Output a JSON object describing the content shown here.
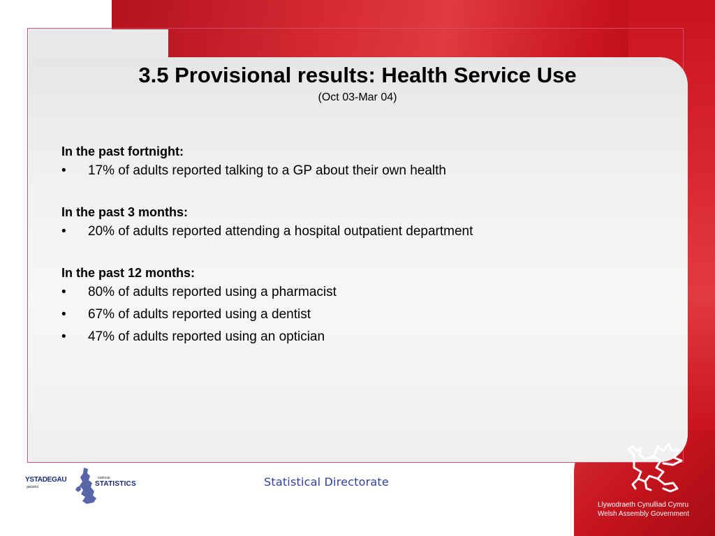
{
  "slide": {
    "title": "3.5 Provisional results: Health Service Use",
    "subtitle": "(Oct 03-Mar 04)",
    "sections": [
      {
        "heading": "In the past fortnight:",
        "bullets": [
          "17% of adults reported talking to a GP about their own health"
        ]
      },
      {
        "heading": "In the past 3 months:",
        "bullets": [
          "20% of adults reported attending a hospital outpatient department"
        ]
      },
      {
        "heading": "In the past 12 months:",
        "bullets": [
          "80% of adults reported using a pharmacist",
          "67% of adults reported using a dentist",
          "47% of adults reported using an optician"
        ]
      }
    ],
    "bullet_symbol": "•"
  },
  "footer": {
    "text": "Statistical Directorate",
    "stats_logo": {
      "welsh": "YSTADEGAU",
      "welsh_sub": "gwladol",
      "english_small": "national",
      "english": "STATISTICS"
    },
    "wag_logo": {
      "line1": "Llywodraeth Cynulliad Cymru",
      "line2": "Welsh Assembly Government"
    }
  },
  "colors": {
    "brand_red": "#c8141e",
    "footer_blue": "#2f3fa0"
  }
}
